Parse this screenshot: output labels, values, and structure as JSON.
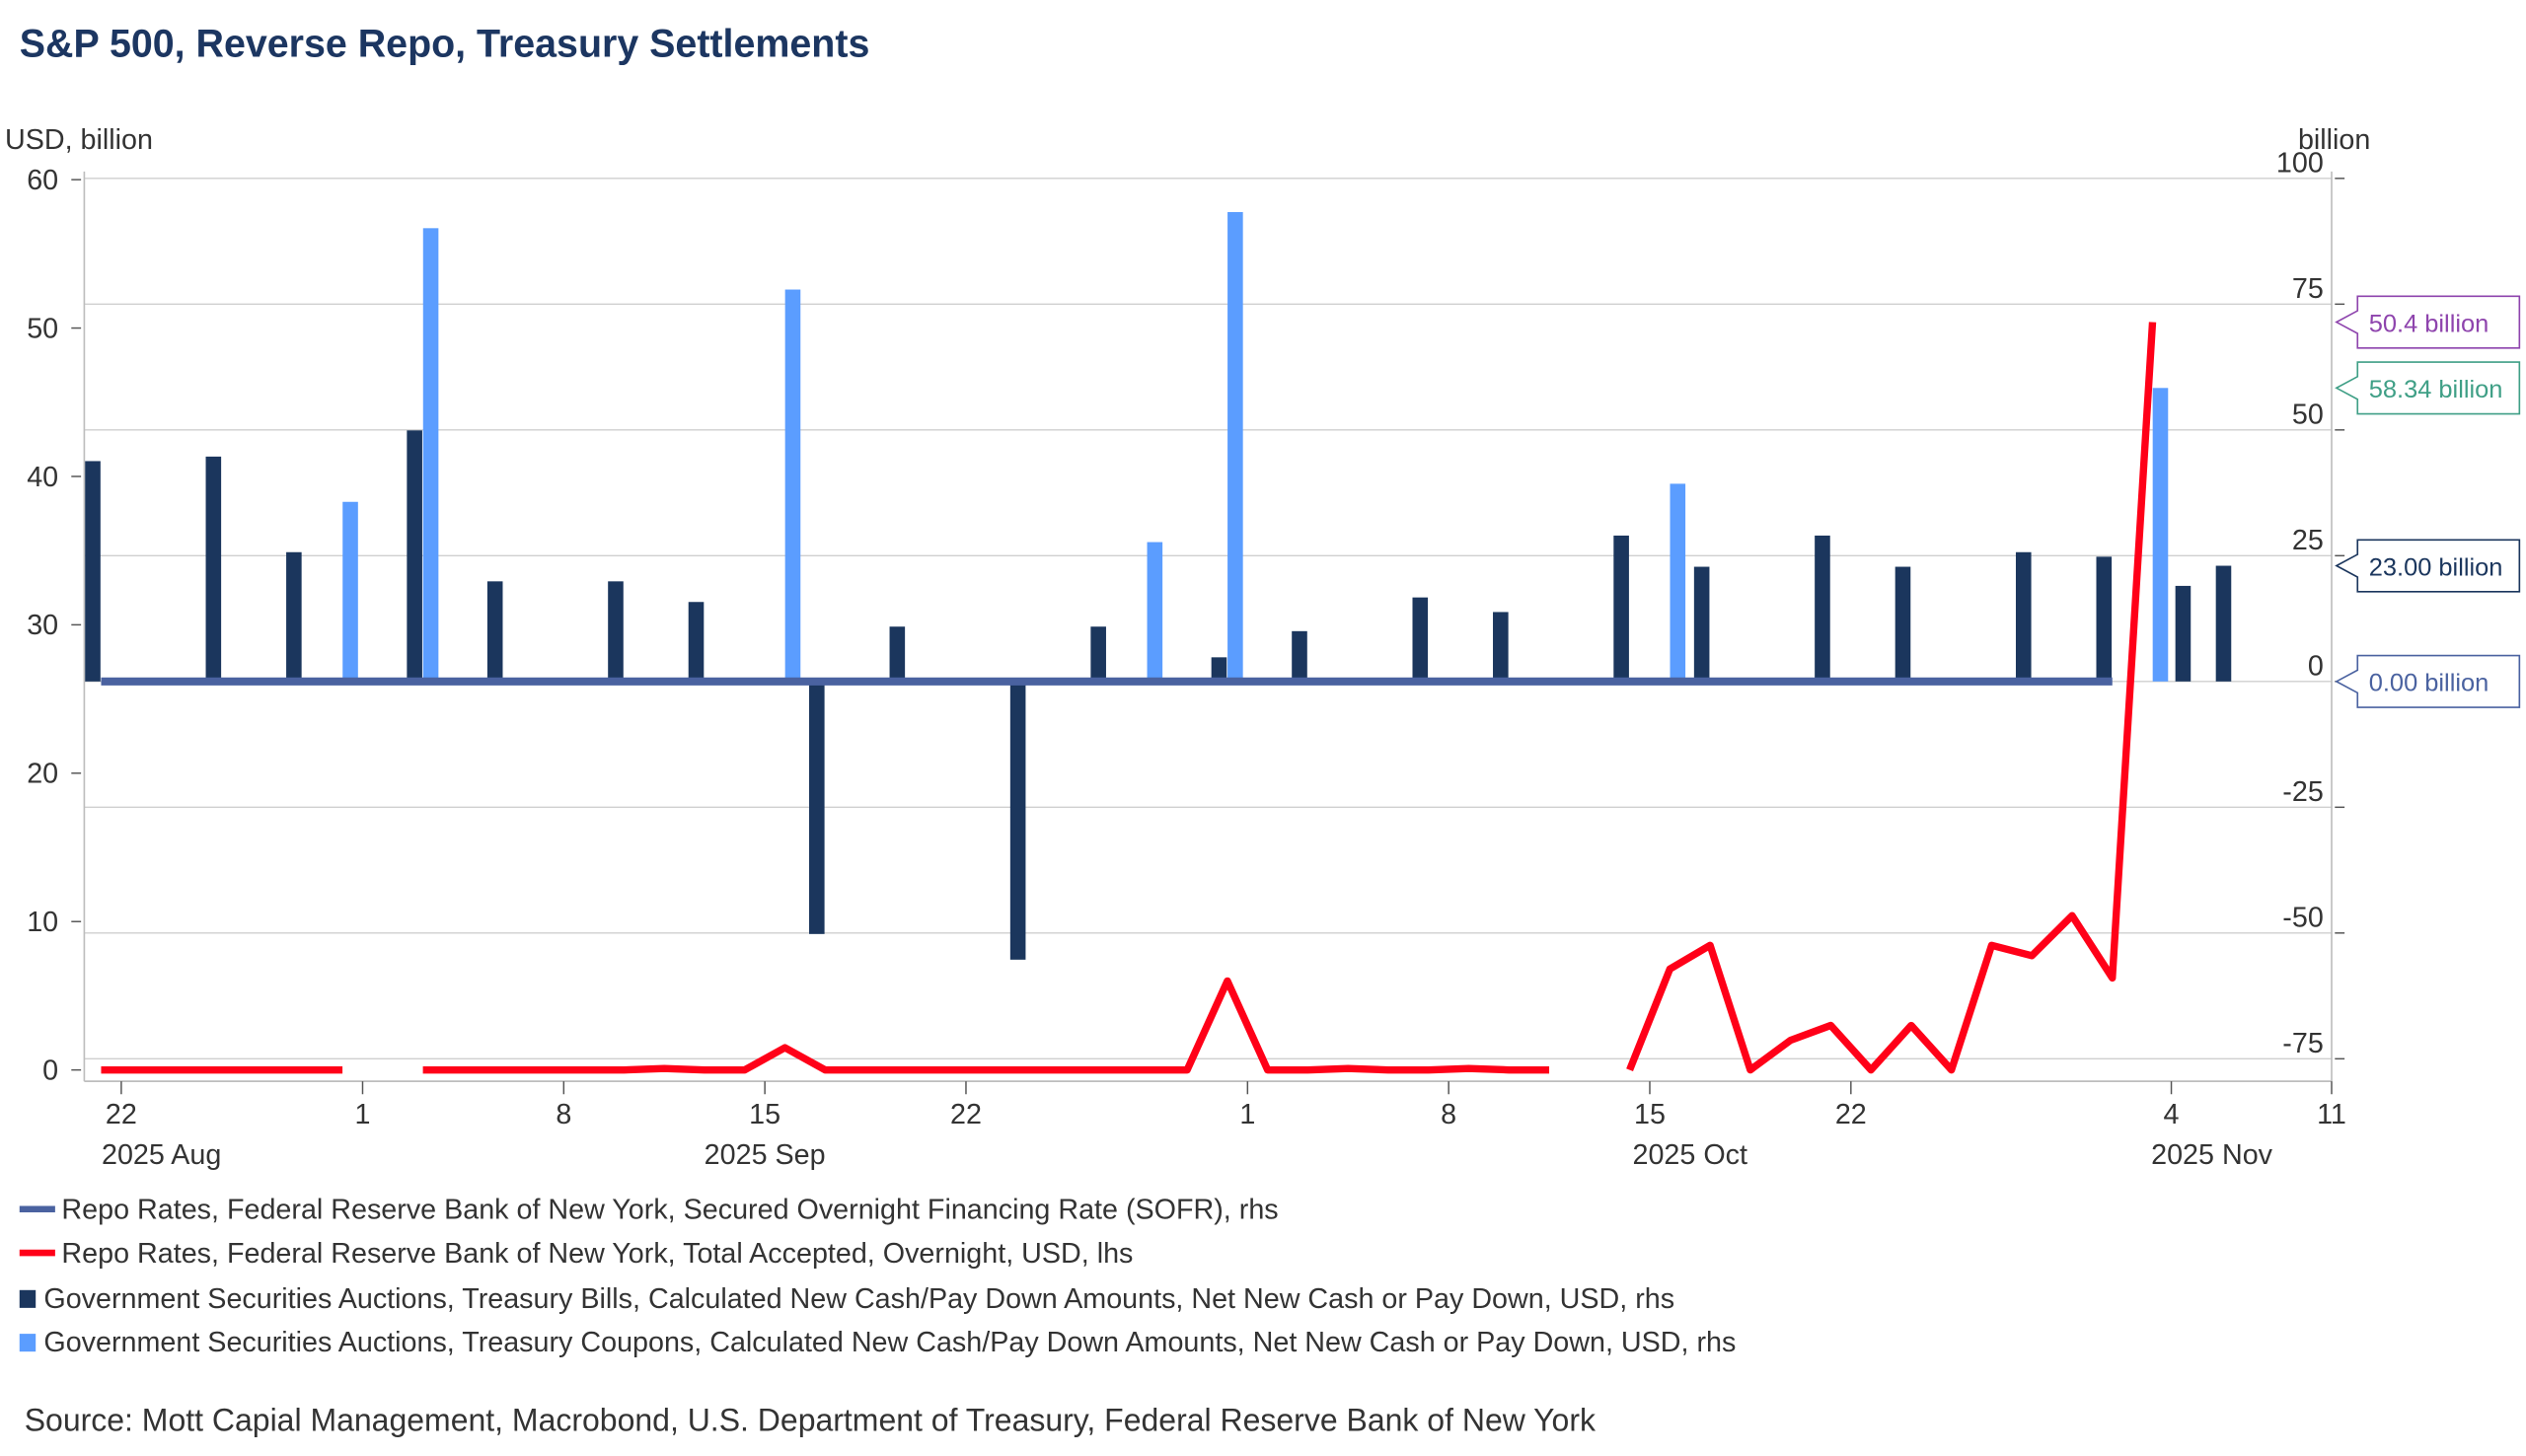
{
  "chart_data": {
    "type": "bar+line",
    "title": "S&P 500, Reverse Repo, Treasury Settlements",
    "left_axis": {
      "label": "USD, billion",
      "range": [
        0,
        60
      ],
      "ticks": [
        0,
        10,
        20,
        30,
        40,
        50,
        60
      ]
    },
    "right_axis": {
      "label": "billion",
      "range": [
        -75,
        100
      ],
      "ticks": [
        -75,
        -50,
        -25,
        0,
        25,
        50,
        75,
        100
      ]
    },
    "grid": true,
    "x_ticks": [
      {
        "date": "2025-08-22",
        "label": "22"
      },
      {
        "date": "2025-09-01",
        "label": "1"
      },
      {
        "date": "2025-09-08",
        "label": "8"
      },
      {
        "date": "2025-09-15",
        "label": "15"
      },
      {
        "date": "2025-09-22",
        "label": "22"
      },
      {
        "date": "2025-10-01",
        "label": "1"
      },
      {
        "date": "2025-10-08",
        "label": "8"
      },
      {
        "date": "2025-10-15",
        "label": "15"
      },
      {
        "date": "2025-10-22",
        "label": "22"
      },
      {
        "date": "2025-11-04",
        "label": "4"
      },
      {
        "date": "2025-11-11",
        "label": "11"
      }
    ],
    "month_labels": [
      {
        "label": "2025 Aug",
        "anchor": "2025-08-25"
      },
      {
        "label": "2025 Sep",
        "anchor": "2025-09-15"
      },
      {
        "label": "2025 Oct",
        "anchor": "2025-10-16"
      },
      {
        "label": "2025 Nov",
        "anchor": "2025-11-06"
      }
    ],
    "series": [
      {
        "name": "Repo Rates, Federal Reserve Bank of New York, Secured Overnight Financing Rate (SOFR), rhs",
        "type": "line",
        "axis": "rhs",
        "color": "#4a62a0",
        "points": [
          [
            "2025-08-21",
            0
          ],
          [
            "2025-10-30",
            0
          ]
        ]
      },
      {
        "name": "Repo Rates, Federal Reserve Bank of New York, Total Accepted, Overnight, USD, lhs",
        "type": "line",
        "axis": "lhs",
        "color": "#ff0018",
        "points": [
          [
            "2025-08-21",
            0
          ],
          [
            "2025-08-22",
            0
          ],
          [
            "2025-08-25",
            0
          ],
          [
            "2025-08-26",
            0
          ],
          [
            "2025-08-27",
            0
          ],
          [
            "2025-08-28",
            0
          ],
          [
            "2025-08-29",
            0
          ],
          [
            "2025-09-01",
            null
          ],
          [
            "2025-09-02",
            0
          ],
          [
            "2025-09-03",
            0
          ],
          [
            "2025-09-04",
            0
          ],
          [
            "2025-09-05",
            0
          ],
          [
            "2025-09-08",
            0
          ],
          [
            "2025-09-09",
            0
          ],
          [
            "2025-09-10",
            0.1
          ],
          [
            "2025-09-11",
            0
          ],
          [
            "2025-09-12",
            0
          ],
          [
            "2025-09-15",
            1.5
          ],
          [
            "2025-09-16",
            0
          ],
          [
            "2025-09-17",
            0
          ],
          [
            "2025-09-18",
            0
          ],
          [
            "2025-09-19",
            0
          ],
          [
            "2025-09-22",
            0
          ],
          [
            "2025-09-23",
            0
          ],
          [
            "2025-09-24",
            0
          ],
          [
            "2025-09-25",
            0
          ],
          [
            "2025-09-26",
            0
          ],
          [
            "2025-09-29",
            0
          ],
          [
            "2025-09-30",
            6.0
          ],
          [
            "2025-10-01",
            0
          ],
          [
            "2025-10-02",
            0
          ],
          [
            "2025-10-03",
            0.1
          ],
          [
            "2025-10-06",
            0
          ],
          [
            "2025-10-07",
            0
          ],
          [
            "2025-10-08",
            0.1
          ],
          [
            "2025-10-09",
            0
          ],
          [
            "2025-10-10",
            0
          ],
          [
            "2025-10-13",
            null
          ],
          [
            "2025-10-14",
            0
          ],
          [
            "2025-10-15",
            6.8
          ],
          [
            "2025-10-16",
            8.4
          ],
          [
            "2025-10-17",
            0
          ],
          [
            "2025-10-20",
            2.0
          ],
          [
            "2025-10-21",
            3.0
          ],
          [
            "2025-10-22",
            0
          ],
          [
            "2025-10-23",
            3.0
          ],
          [
            "2025-10-24",
            0
          ],
          [
            "2025-10-27",
            8.4
          ],
          [
            "2025-10-28",
            7.7
          ],
          [
            "2025-10-29",
            10.4
          ],
          [
            "2025-10-30",
            6.2
          ],
          [
            "2025-10-31",
            50.4
          ]
        ]
      },
      {
        "name": "Government Securities Auctions, Treasury Bills, Calculated New Cash/Pay Down Amounts, Net New Cash or Pay Down, USD, rhs",
        "type": "bar",
        "axis": "rhs",
        "color": "#1b365d",
        "points": [
          [
            "2025-08-21",
            43.8
          ],
          [
            "2025-08-26",
            44.7
          ],
          [
            "2025-08-28",
            25.7
          ],
          [
            "2025-09-02",
            49.9
          ],
          [
            "2025-09-04",
            19.9
          ],
          [
            "2025-09-09",
            19.9
          ],
          [
            "2025-09-11",
            15.8
          ],
          [
            "2025-09-16",
            -50.2
          ],
          [
            "2025-09-18",
            10.9
          ],
          [
            "2025-09-23",
            -55.3
          ],
          [
            "2025-09-25",
            10.9
          ],
          [
            "2025-09-30",
            4.8
          ],
          [
            "2025-10-02",
            10.0
          ],
          [
            "2025-10-07",
            16.7
          ],
          [
            "2025-10-09",
            13.8
          ],
          [
            "2025-10-14",
            29.0
          ],
          [
            "2025-10-16",
            22.8
          ],
          [
            "2025-10-21",
            29.0
          ],
          [
            "2025-10-23",
            22.8
          ],
          [
            "2025-10-28",
            25.7
          ],
          [
            "2025-10-30",
            24.8
          ],
          [
            "2025-11-04",
            19.0
          ],
          [
            "2025-11-06",
            23.0
          ]
        ]
      },
      {
        "name": "Government Securities Auctions, Treasury Coupons, Calculated New Cash/Pay Down Amounts, Net New Cash or Pay Down, USD, rhs",
        "type": "bar",
        "axis": "rhs",
        "color": "#5b9dff",
        "points": [
          [
            "2025-08-29",
            35.7
          ],
          [
            "2025-09-02",
            90.1
          ],
          [
            "2025-09-15",
            77.9
          ],
          [
            "2025-09-26",
            27.7
          ],
          [
            "2025-09-30",
            93.3
          ],
          [
            "2025-10-15",
            39.3
          ],
          [
            "2025-10-31",
            58.34
          ]
        ]
      }
    ],
    "annotations": [
      {
        "text": "50.4 billion",
        "axis": "lhs",
        "value": 50.4,
        "color": "#8e44ad"
      },
      {
        "text": "58.34 billion",
        "axis": "rhs",
        "value": 58.34,
        "color": "#3f9f86"
      },
      {
        "text": "23.00 billion",
        "axis": "rhs",
        "value": 23.0,
        "color": "#1b365d"
      },
      {
        "text": "0.00 billion",
        "axis": "rhs",
        "value": 0.0,
        "color": "#4a62a0"
      }
    ],
    "legend_placement": "bottom",
    "source": "Source: Mott Capial Management, Macrobond, U.S. Department of Treasury, Federal Reserve Bank of New York"
  }
}
